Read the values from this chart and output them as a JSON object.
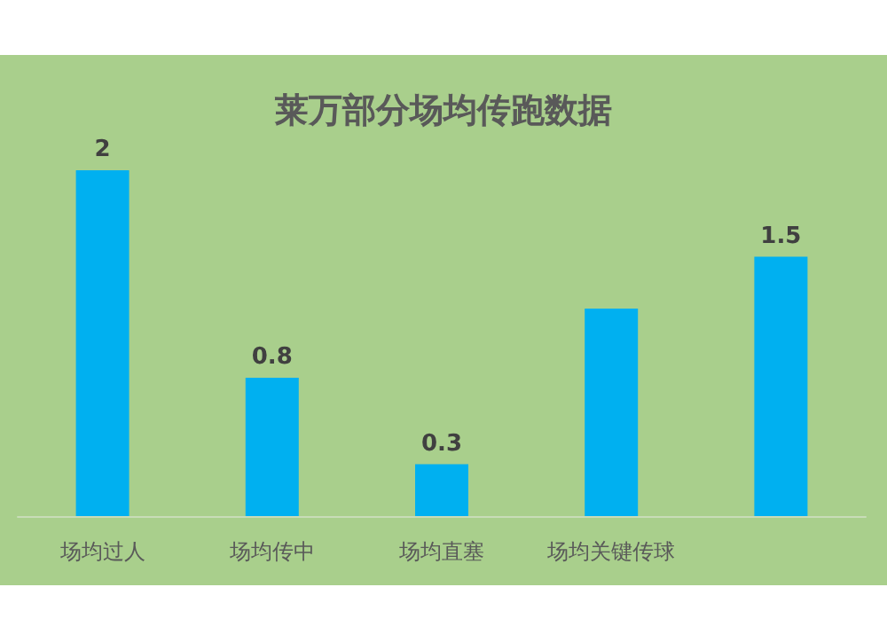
{
  "chart_data": {
    "type": "bar",
    "title": "莱万部分场均传跑数据",
    "categories": [
      "场均过人",
      "场均传中",
      "场均直塞",
      "场均关键传球",
      null
    ],
    "values": [
      2,
      0.8,
      0.3,
      1.2,
      1.5
    ],
    "color": "#00b0f0",
    "value_labels": [
      "2",
      "0.8",
      "0.3",
      null,
      "1.5"
    ]
  }
}
